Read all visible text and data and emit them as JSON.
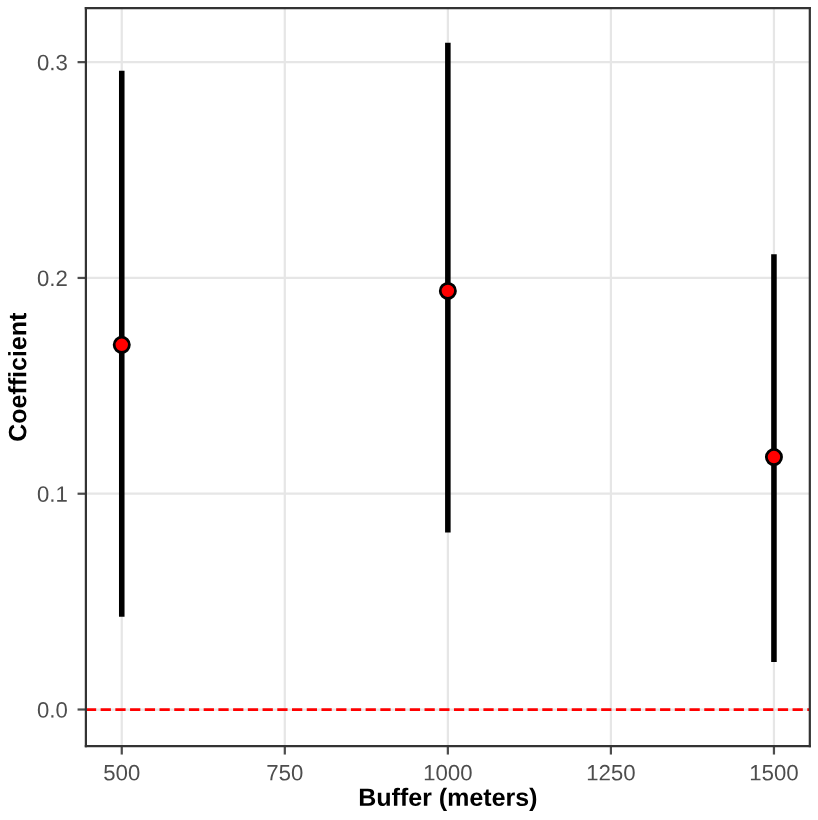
{
  "chart_data": {
    "type": "scatter",
    "xlabel": "Buffer (meters)",
    "ylabel": "Coefficient",
    "x": [
      500,
      1000,
      1500
    ],
    "series": [
      {
        "color": "#ff0000",
        "values": [
          0.169,
          0.194,
          0.117
        ],
        "errors": [
          [
            0.043,
            0.296
          ],
          [
            0.082,
            0.309
          ],
          [
            0.022,
            0.211
          ]
        ]
      }
    ],
    "xlim": [
      445,
      1555
    ],
    "xticks": [
      500,
      750,
      1000,
      1250,
      1500
    ],
    "ylim": [
      -0.017,
      0.325
    ],
    "yticks": [
      {
        "value": 0,
        "label": "0.0"
      },
      0.1,
      0.2,
      0.3
    ],
    "ref_lines": [
      {
        "axis": "y",
        "value": 0,
        "color": "#ff0000",
        "line_style": "dashed"
      }
    ],
    "grid": true,
    "marker": "circle"
  }
}
